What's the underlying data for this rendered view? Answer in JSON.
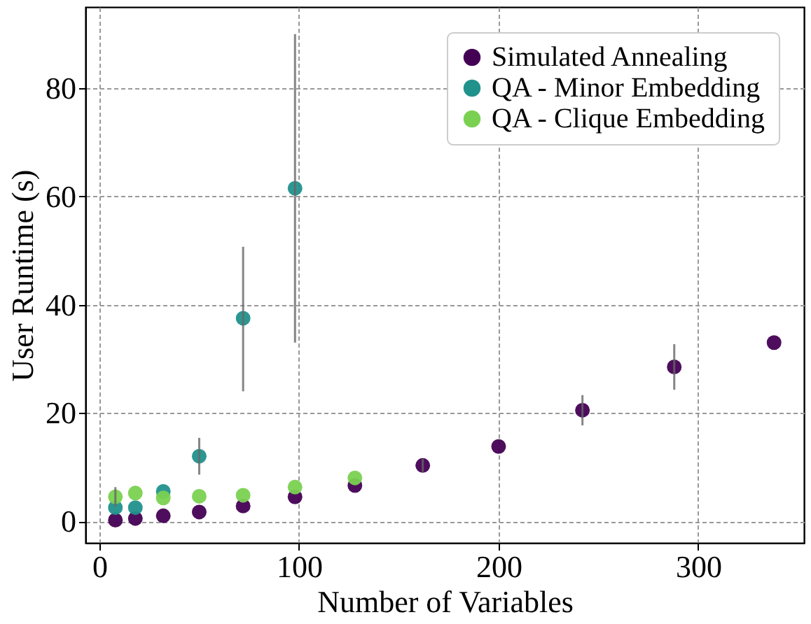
{
  "chart_data": {
    "type": "scatter",
    "xlabel": "Number of Variables",
    "ylabel": "User Runtime (s)",
    "xlim": [
      -7,
      353
    ],
    "ylim": [
      -4,
      95
    ],
    "xticks": [
      0,
      100,
      200,
      300
    ],
    "yticks": [
      0,
      20,
      40,
      60,
      80
    ],
    "grid": true,
    "legend": "top right",
    "marker": "circle",
    "series": [
      {
        "name": "Simulated Annealing",
        "color": "#440154",
        "x": [
          8,
          18,
          32,
          50,
          72,
          98,
          128,
          162,
          200,
          242,
          288,
          338
        ],
        "values": [
          0.2,
          0.5,
          1,
          1.7,
          2.8,
          4.5,
          6.6,
          10.3,
          13.8,
          20.5,
          28.5,
          33
        ],
        "errors": [
          null,
          null,
          null,
          null,
          null,
          null,
          null,
          1.2,
          null,
          2.8,
          4.2,
          null
        ]
      },
      {
        "name": "QA - Minor Embedding",
        "color": "#21918c",
        "x": [
          8,
          18,
          32,
          50,
          72,
          98
        ],
        "values": [
          2.5,
          2.5,
          5.5,
          12,
          37.5,
          61.5
        ],
        "errors": [
          null,
          null,
          null,
          3.4,
          [
            24,
            50.7
          ],
          [
            33,
            90
          ]
        ]
      },
      {
        "name": "QA - Clique Embedding",
        "color": "#7ad151",
        "x": [
          8,
          18,
          32,
          50,
          72,
          98,
          128
        ],
        "values": [
          4.5,
          5.2,
          4.3,
          4.6,
          4.8,
          6.3,
          8
        ],
        "errors": [
          1.8,
          null,
          null,
          null,
          null,
          null,
          null
        ]
      }
    ]
  }
}
